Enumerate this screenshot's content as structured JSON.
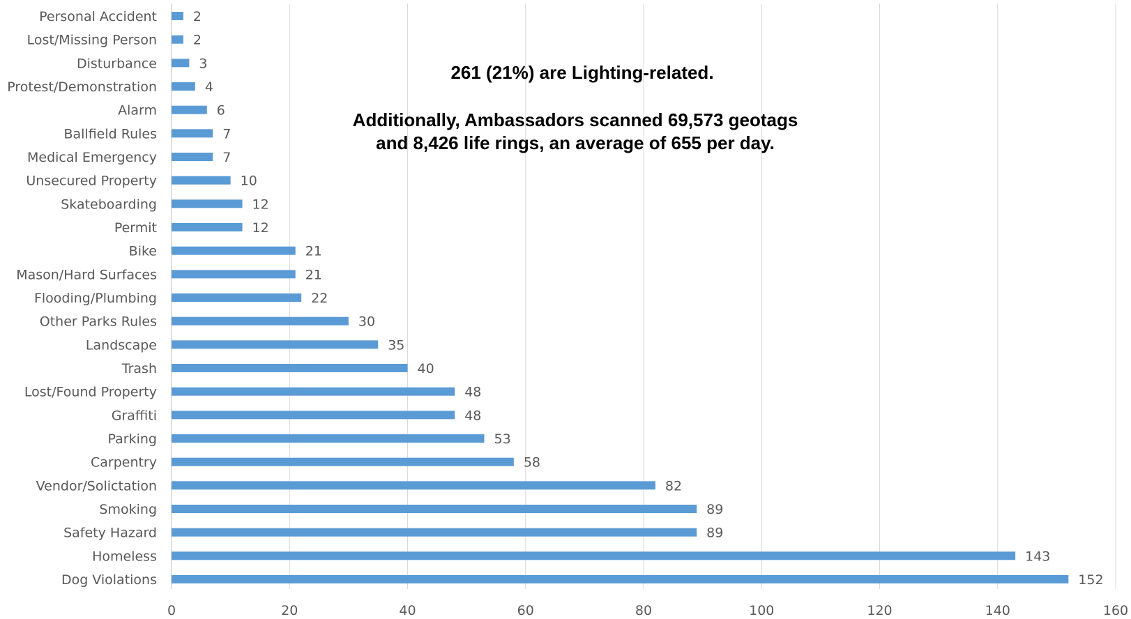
{
  "chart_data": {
    "type": "bar",
    "orientation": "horizontal",
    "categories": [
      "Personal Accident",
      "Lost/Missing Person",
      "Disturbance",
      "Protest/Demonstration",
      "Alarm",
      "Ballfield Rules",
      "Medical Emergency",
      "Unsecured Property",
      "Skateboarding",
      "Permit",
      "Bike",
      "Mason/Hard Surfaces",
      "Flooding/Plumbing",
      "Other Parks Rules",
      "Landscape",
      "Trash",
      "Lost/Found Property",
      "Graffiti",
      "Parking",
      "Carpentry",
      "Vendor/Solictation",
      "Smoking",
      "Safety Hazard",
      "Homeless",
      "Dog Violations"
    ],
    "values": [
      2,
      2,
      3,
      4,
      6,
      7,
      7,
      10,
      12,
      12,
      21,
      21,
      22,
      30,
      35,
      40,
      48,
      48,
      53,
      58,
      82,
      89,
      89,
      143,
      152
    ],
    "xlim": [
      0,
      160
    ],
    "x_ticks": [
      0,
      20,
      40,
      60,
      80,
      100,
      120,
      140,
      160
    ],
    "grid": "vertical",
    "bar_color": "#5b9bd5",
    "data_labels": true,
    "title": "",
    "xlabel": "",
    "ylabel": ""
  },
  "annotations": {
    "lighting": "261 (21%)  are Lighting-related.",
    "scans": "Additionally, Ambassadors scanned 69,573 geotags and 8,426 life rings, an average of 655 per day."
  }
}
